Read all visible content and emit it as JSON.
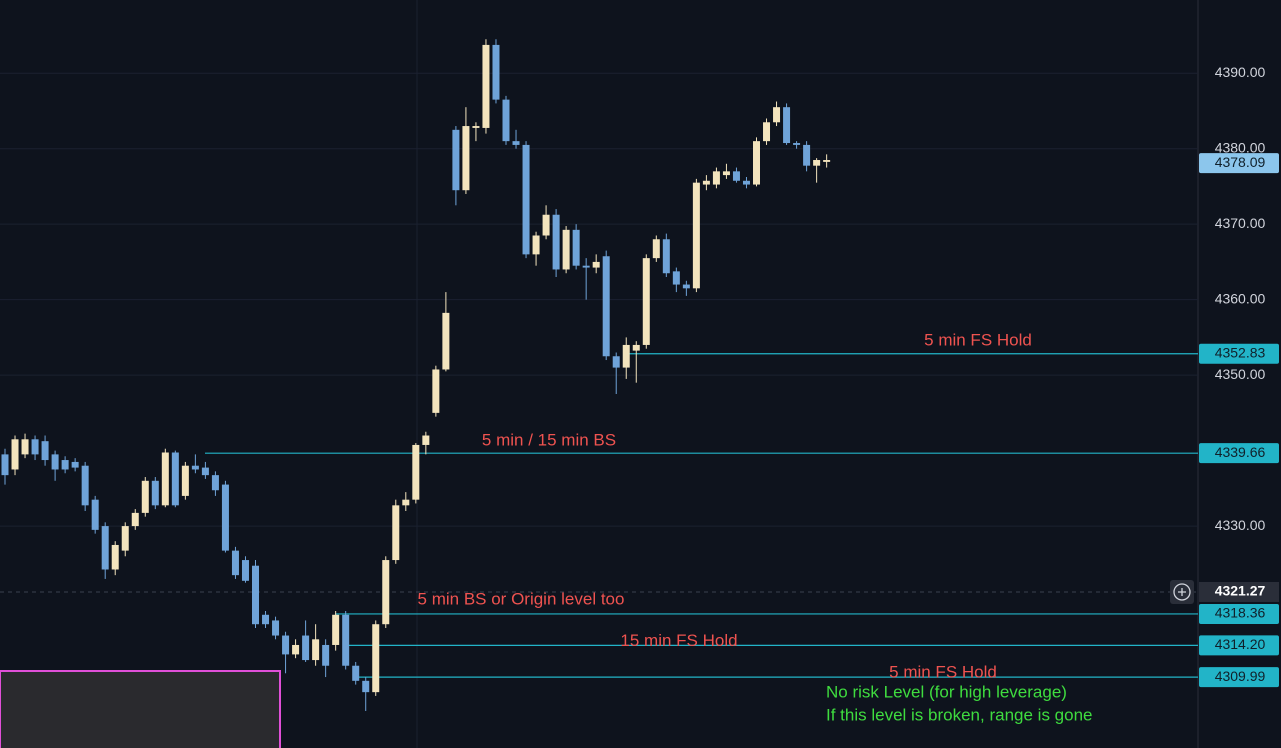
{
  "chart_data": {
    "type": "candlestick",
    "open": [
      4339.5,
      4337.5,
      4339.5,
      4341.5,
      4341.25,
      4339.5,
      4338.75,
      4338.5,
      4338,
      4333.5,
      4330,
      4324.25,
      4326.75,
      4330,
      4331.75,
      4336,
      4332.75,
      4339.75,
      4334,
      4338,
      4337.75,
      4336.75,
      4335.5,
      4326.75,
      4325.5,
      4324.75,
      4318.25,
      4317.5,
      4315.5,
      4313,
      4315.5,
      4312.25,
      4314.25,
      4314.25,
      4318.25,
      4311.5,
      4309.5,
      4308,
      4317,
      4325.5,
      4332.75,
      4333.5,
      4340.75,
      4345,
      4350.75,
      4382.5,
      4374.5,
      4382.75,
      4382.75,
      4393.75,
      4386.5,
      4381,
      4380.5,
      4366,
      4368.5,
      4371.25,
      4364,
      4369.25,
      4364.5,
      4364.25,
      4365.75,
      4352.5,
      4351,
      4353.25,
      4354,
      4365.5,
      4368,
      4363.75,
      4362,
      4361.5,
      4375.25,
      4375.25,
      4376.5,
      4377,
      4375.75,
      4375.25,
      4381,
      4383.5,
      4385.5,
      4380.75,
      4380.5,
      4377.75,
      4378.25
    ],
    "high": [
      4340.25,
      4342,
      4342.25,
      4342,
      4342,
      4340,
      4339.25,
      4339,
      4338.5,
      4334,
      4330.5,
      4328,
      4330.5,
      4332.25,
      4336.5,
      4336.5,
      4340.25,
      4340,
      4338.5,
      4339.5,
      4338.5,
      4337.25,
      4336,
      4327.25,
      4326,
      4325.5,
      4318.75,
      4318,
      4316,
      4315,
      4317.5,
      4317,
      4315,
      4318.75,
      4318.75,
      4312,
      4310,
      4317.5,
      4326,
      4333.5,
      4334.5,
      4341,
      4342.5,
      4351.25,
      4361,
      4383,
      4385.5,
      4383.5,
      4394.5,
      4394.5,
      4387,
      4382.5,
      4381,
      4369,
      4372.5,
      4372,
      4369.75,
      4370,
      4365.5,
      4366,
      4366.5,
      4353,
      4355,
      4354.5,
      4366,
      4368.5,
      4368.75,
      4364.25,
      4362.5,
      4376,
      4376.5,
      4377.5,
      4378,
      4377.5,
      4376.25,
      4381.5,
      4384,
      4386.25,
      4386,
      4381,
      4381,
      4378.75,
      4379.25
    ],
    "low": [
      4335.5,
      4336.75,
      4339,
      4338.75,
      4338,
      4336,
      4337,
      4337.25,
      4332,
      4329,
      4323,
      4323.5,
      4326,
      4329.5,
      4331.25,
      4332.25,
      4332.5,
      4332.5,
      4333.5,
      4337,
      4336.25,
      4334,
      4326.5,
      4323,
      4322.5,
      4316.5,
      4316.5,
      4315,
      4310.5,
      4312.5,
      4312,
      4311.5,
      4310,
      4313.5,
      4311,
      4309,
      4305.5,
      4307.5,
      4316.5,
      4325,
      4332,
      4333,
      4339.5,
      4344.5,
      4350.5,
      4372.5,
      4374,
      4381,
      4382,
      4386,
      4380.5,
      4380,
      4365.5,
      4364.5,
      4368,
      4363,
      4363.5,
      4364,
      4360,
      4363.5,
      4352,
      4347.5,
      4349.5,
      4349,
      4353.5,
      4365,
      4363,
      4361,
      4360.5,
      4361,
      4374.5,
      4374.75,
      4376,
      4375.5,
      4374.75,
      4375,
      4380.5,
      4383,
      4380.5,
      4380,
      4377,
      4375.5,
      4377.5
    ],
    "close": [
      4336.75,
      4341.5,
      4341.5,
      4339.5,
      4338.75,
      4337.5,
      4337.5,
      4337.75,
      4332.75,
      4329.5,
      4324.25,
      4327.5,
      4330,
      4331.75,
      4336,
      4332.75,
      4339.75,
      4332.75,
      4338,
      4337.5,
      4336.75,
      4334.75,
      4326.75,
      4323.5,
      4322.75,
      4317,
      4317,
      4315.5,
      4313,
      4314.25,
      4312.25,
      4315,
      4311.5,
      4318.25,
      4311.5,
      4309.5,
      4308,
      4317,
      4325.5,
      4332.75,
      4333.5,
      4340.75,
      4342,
      4350.75,
      4358.25,
      4374.5,
      4383,
      4383,
      4393.75,
      4386.5,
      4381,
      4380.5,
      4366,
      4368.5,
      4371.25,
      4364,
      4369.25,
      4364.5,
      4364.25,
      4365,
      4352.5,
      4351,
      4354,
      4354,
      4365.5,
      4368,
      4363.5,
      4362,
      4361.5,
      4375.5,
      4375.75,
      4377,
      4377,
      4375.75,
      4375.25,
      4381,
      4383.5,
      4385.5,
      4380.75,
      4380.5,
      4377.75,
      4378.5,
      4378.5
    ],
    "up_color": "#f3e4bd",
    "down_color": "#6fa3d8",
    "ylim": [
      4300.6,
      4399.7
    ],
    "yticks": [
      {
        "value": 4330,
        "label": "4330.00"
      },
      {
        "value": 4350,
        "label": "4350.00"
      },
      {
        "value": 4360,
        "label": "4360.00"
      },
      {
        "value": 4370,
        "label": "4370.00"
      },
      {
        "value": 4380,
        "label": "4380.00"
      },
      {
        "value": 4390,
        "label": "4390.00"
      }
    ],
    "grid": true,
    "last_price": {
      "value": 4378.09,
      "label": "4378.09",
      "color": "#8cc6ec"
    },
    "crosshair": {
      "value": 4321.27,
      "label": "4321.27"
    },
    "level_color": "#22b4c8",
    "note_color": "#ef5350",
    "levels": [
      {
        "value": 4352.83,
        "label": "4352.83",
        "note": "5 min FS Hold"
      },
      {
        "value": 4339.66,
        "label": "4339.66",
        "note": "5 min / 15 min BS"
      },
      {
        "value": 4318.36,
        "label": "4318.36",
        "note": "5 min BS or Origin level too"
      },
      {
        "value": 4314.2,
        "label": "4314.20",
        "note": "15 min FS Hold"
      },
      {
        "value": 4309.99,
        "label": "4309.99",
        "note": "5 min FS Hold"
      }
    ],
    "comment_color": "#3fdc3f",
    "comments": [
      "No risk Level (for high leverage)",
      "If this level is broken, range is gone"
    ]
  }
}
